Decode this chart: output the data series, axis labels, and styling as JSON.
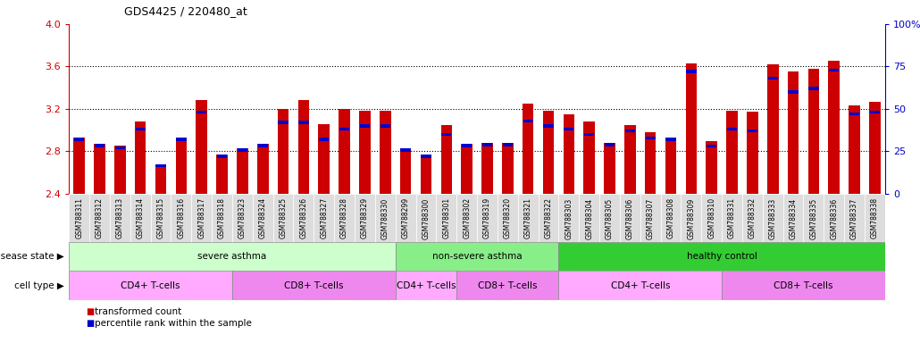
{
  "title": "GDS4425 / 220480_at",
  "samples": [
    "GSM788311",
    "GSM788312",
    "GSM788313",
    "GSM788314",
    "GSM788315",
    "GSM788316",
    "GSM788317",
    "GSM788318",
    "GSM788323",
    "GSM788324",
    "GSM788325",
    "GSM788326",
    "GSM788327",
    "GSM788328",
    "GSM788329",
    "GSM788330",
    "GSM788299",
    "GSM788300",
    "GSM788301",
    "GSM788302",
    "GSM788319",
    "GSM788320",
    "GSM788321",
    "GSM788322",
    "GSM788303",
    "GSM788304",
    "GSM788305",
    "GSM788306",
    "GSM788307",
    "GSM788308",
    "GSM788309",
    "GSM788310",
    "GSM788331",
    "GSM788332",
    "GSM788333",
    "GSM788334",
    "GSM788335",
    "GSM788336",
    "GSM788337",
    "GSM788338"
  ],
  "bar_values": [
    2.93,
    2.87,
    2.85,
    3.08,
    2.68,
    2.93,
    3.28,
    2.77,
    2.83,
    2.87,
    3.2,
    3.28,
    3.06,
    3.2,
    3.18,
    3.18,
    2.83,
    2.77,
    3.05,
    2.87,
    2.88,
    2.88,
    3.25,
    3.18,
    3.15,
    3.08,
    2.88,
    3.05,
    2.98,
    2.93,
    3.63,
    2.9,
    3.18,
    3.17,
    3.62,
    3.55,
    3.58,
    3.65,
    3.23,
    3.27
  ],
  "percentile_values": [
    37,
    32,
    30,
    38,
    20,
    38,
    48,
    28,
    33,
    35,
    42,
    42,
    32,
    38,
    40,
    40,
    32,
    28,
    35,
    33,
    33,
    33,
    43,
    40,
    38,
    35,
    33,
    37,
    33,
    32,
    72,
    28,
    38,
    37,
    68,
    60,
    62,
    73,
    47,
    48
  ],
  "ylim_left": [
    2.4,
    4.0
  ],
  "ylim_right": [
    0,
    100
  ],
  "yticks_left": [
    2.4,
    2.8,
    3.2,
    3.6,
    4.0
  ],
  "yticks_right": [
    0,
    25,
    50,
    75,
    100
  ],
  "disease_state_groups": [
    {
      "label": "severe asthma",
      "start": 0,
      "end": 15,
      "color": "#ccffcc"
    },
    {
      "label": "non-severe asthma",
      "start": 16,
      "end": 23,
      "color": "#88ee88"
    },
    {
      "label": "healthy control",
      "start": 24,
      "end": 39,
      "color": "#33cc33"
    }
  ],
  "cell_type_groups": [
    {
      "label": "CD4+ T-cells",
      "start": 0,
      "end": 7,
      "color": "#ffaaff"
    },
    {
      "label": "CD8+ T-cells",
      "start": 8,
      "end": 15,
      "color": "#ee88ee"
    },
    {
      "label": "CD4+ T-cells",
      "start": 16,
      "end": 18,
      "color": "#ffaaff"
    },
    {
      "label": "CD8+ T-cells",
      "start": 19,
      "end": 23,
      "color": "#ee88ee"
    },
    {
      "label": "CD4+ T-cells",
      "start": 24,
      "end": 31,
      "color": "#ffaaff"
    },
    {
      "label": "CD8+ T-cells",
      "start": 32,
      "end": 39,
      "color": "#ee88ee"
    }
  ],
  "bar_color": "#cc0000",
  "percentile_color": "#0000cc",
  "left_axis_color": "#cc0000",
  "right_axis_color": "#0000cc",
  "tick_bg_color": "#dddddd",
  "legend_items": [
    {
      "label": "transformed count",
      "color": "#cc0000"
    },
    {
      "label": "percentile rank within the sample",
      "color": "#0000cc"
    }
  ]
}
